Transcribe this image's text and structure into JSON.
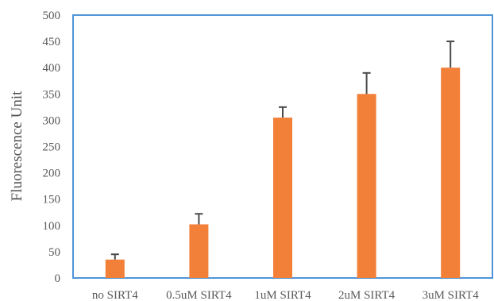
{
  "chart_data": {
    "type": "bar",
    "categories": [
      "no SIRT4",
      "0.5uM SIRT4",
      "1uM SIRT4",
      "2uM SIRT4",
      "3uM SIRT4"
    ],
    "values": [
      35,
      102,
      305,
      350,
      400
    ],
    "error_upper": [
      45,
      122,
      325,
      390,
      450
    ],
    "title": "",
    "xlabel": "",
    "ylabel": "Fluorescence Unit",
    "ylim": [
      0,
      500
    ],
    "yticks": [
      0,
      50,
      100,
      150,
      200,
      250,
      300,
      350,
      400,
      450,
      500
    ],
    "grid": false,
    "legend": "none",
    "bar_color": "#f28038",
    "frame_color": "#4f95d8",
    "error_bar_color": "#4a4a4a"
  }
}
